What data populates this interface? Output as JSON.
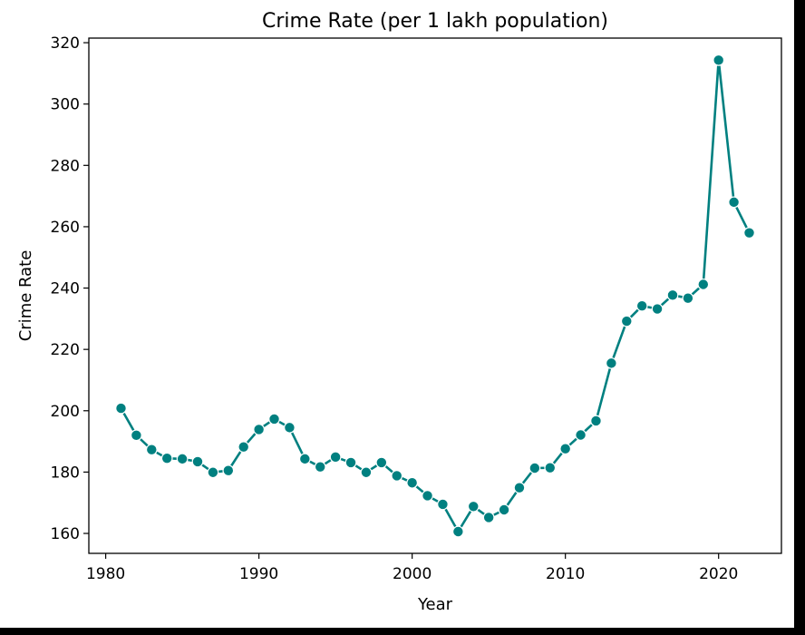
{
  "chart_data": {
    "type": "line",
    "title": "Crime Rate (per 1 lakh population)",
    "xlabel": "Year",
    "ylabel": "Crime Rate",
    "xlim": [
      1978.9,
      2024.1
    ],
    "ylim": [
      153.5,
      321.5
    ],
    "xticks": [
      1980,
      1990,
      2000,
      2010,
      2020
    ],
    "yticks": [
      160,
      180,
      200,
      220,
      240,
      260,
      280,
      300,
      320
    ],
    "grid": false,
    "color": "#008080",
    "marker": "circle",
    "x": [
      1981,
      1982,
      1983,
      1984,
      1985,
      1986,
      1987,
      1988,
      1989,
      1990,
      1991,
      1992,
      1993,
      1994,
      1995,
      1996,
      1997,
      1998,
      1999,
      2000,
      2001,
      2002,
      2003,
      2004,
      2005,
      2006,
      2007,
      2008,
      2009,
      2010,
      2011,
      2012,
      2013,
      2014,
      2015,
      2016,
      2017,
      2018,
      2019,
      2020,
      2021,
      2022
    ],
    "y": [
      200.8,
      192.0,
      187.3,
      184.5,
      184.3,
      183.4,
      179.9,
      180.5,
      188.2,
      193.9,
      197.3,
      194.5,
      184.3,
      181.7,
      184.9,
      183.1,
      179.9,
      183.1,
      178.8,
      176.5,
      172.3,
      169.5,
      160.6,
      168.8,
      165.2,
      167.7,
      174.9,
      181.3,
      181.4,
      187.6,
      192.1,
      196.7,
      215.5,
      229.2,
      234.2,
      233.2,
      237.7,
      236.7,
      241.2,
      314.3,
      268.0,
      258.0
    ]
  }
}
